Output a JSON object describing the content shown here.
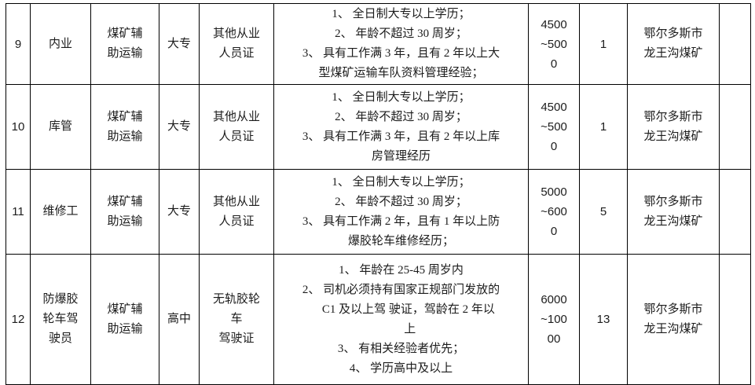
{
  "colors": {
    "background": "#ffffff",
    "border": "#000000",
    "text": "#1c1c1c"
  },
  "table": {
    "rows": [
      {
        "no": "9",
        "position": "内业",
        "department": "煤矿辅\n助运输",
        "education": "大专",
        "certificate": "其他从业\n人员证",
        "requirements": [
          "1、 全日制大专以上学历；",
          "2、 年龄不超过 30 周岁；",
          "3、 具有工作满 3 年，且有 2 年以上大",
          "型煤矿运输车队资料管理经验；"
        ],
        "salary": "4500\n~500\n0",
        "count": "1",
        "location": "鄂尔多斯市\n龙王沟煤矿",
        "note": ""
      },
      {
        "no": "10",
        "position": "库管",
        "department": "煤矿辅\n助运输",
        "education": "大专",
        "certificate": "其他从业\n人员证",
        "requirements": [
          "1、 全日制大专以上学历；",
          "2、 年龄不超过 30 周岁；",
          "3、 具有工作满 3 年，且有 2 年以上库",
          "房管理经历"
        ],
        "salary": "4500\n~500\n0",
        "count": "1",
        "location": "鄂尔多斯市\n龙王沟煤矿",
        "note": ""
      },
      {
        "no": "11",
        "position": "维修工",
        "department": "煤矿辅\n助运输",
        "education": "大专",
        "certificate": "其他从业\n人员证",
        "requirements": [
          "1、 全日制大专以上学历；",
          "2、 年龄不超过 30 周岁；",
          "3、 具有工作满 2 年，且有 1 年以上防",
          "爆胶轮车维修经历；"
        ],
        "salary": "5000\n~600\n0",
        "count": "5",
        "location": "鄂尔多斯市\n龙王沟煤矿",
        "note": ""
      },
      {
        "no": "12",
        "position": "防爆胶\n轮车驾\n驶员",
        "department": "煤矿辅\n助运输",
        "education": "高中",
        "certificate": "无轨胶轮\n车\n驾驶证",
        "requirements": [
          "1、 年龄在 25-45 周岁内",
          "2、 司机必须持有国家正规部门发放的",
          "     C1 及以上驾 驶证，驾龄在 2 年以",
          "      上",
          "3、 有相关经验者优先；",
          "4、 学历高中及以上"
        ],
        "salary": "6000\n~100\n00",
        "count": "13",
        "location": "鄂尔多斯市\n龙王沟煤矿",
        "note": ""
      }
    ]
  }
}
